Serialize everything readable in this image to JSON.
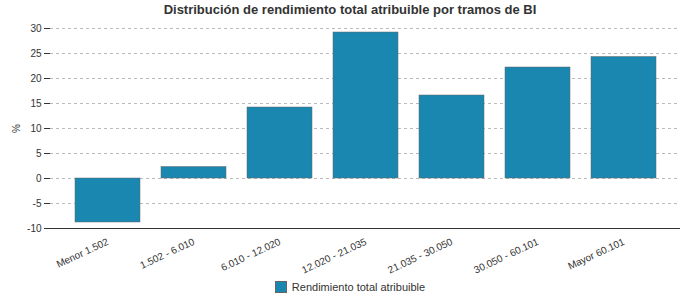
{
  "chart_data": {
    "type": "bar",
    "title": "Distribución de rendimiento total atribuible por tramos de BI",
    "y_label": "%",
    "categories": [
      "Menor 1.502",
      "1.502 - 6.010",
      "6.010 - 12.020",
      "12.020 - 21.035",
      "21.035 - 30.050",
      "30.050 - 60.101",
      "Mayor 60.101"
    ],
    "series": [
      {
        "name": "Rendimiento total atribuible",
        "color": "#1a87b0",
        "values": [
          -8.8,
          2.3,
          14.2,
          29.2,
          16.6,
          22.2,
          24.3
        ]
      }
    ],
    "ylim": [
      -10,
      30
    ],
    "yticks": [
      -10,
      -5,
      0,
      5,
      10,
      15,
      20,
      25,
      30
    ],
    "grid": true,
    "legend": "bottom"
  }
}
